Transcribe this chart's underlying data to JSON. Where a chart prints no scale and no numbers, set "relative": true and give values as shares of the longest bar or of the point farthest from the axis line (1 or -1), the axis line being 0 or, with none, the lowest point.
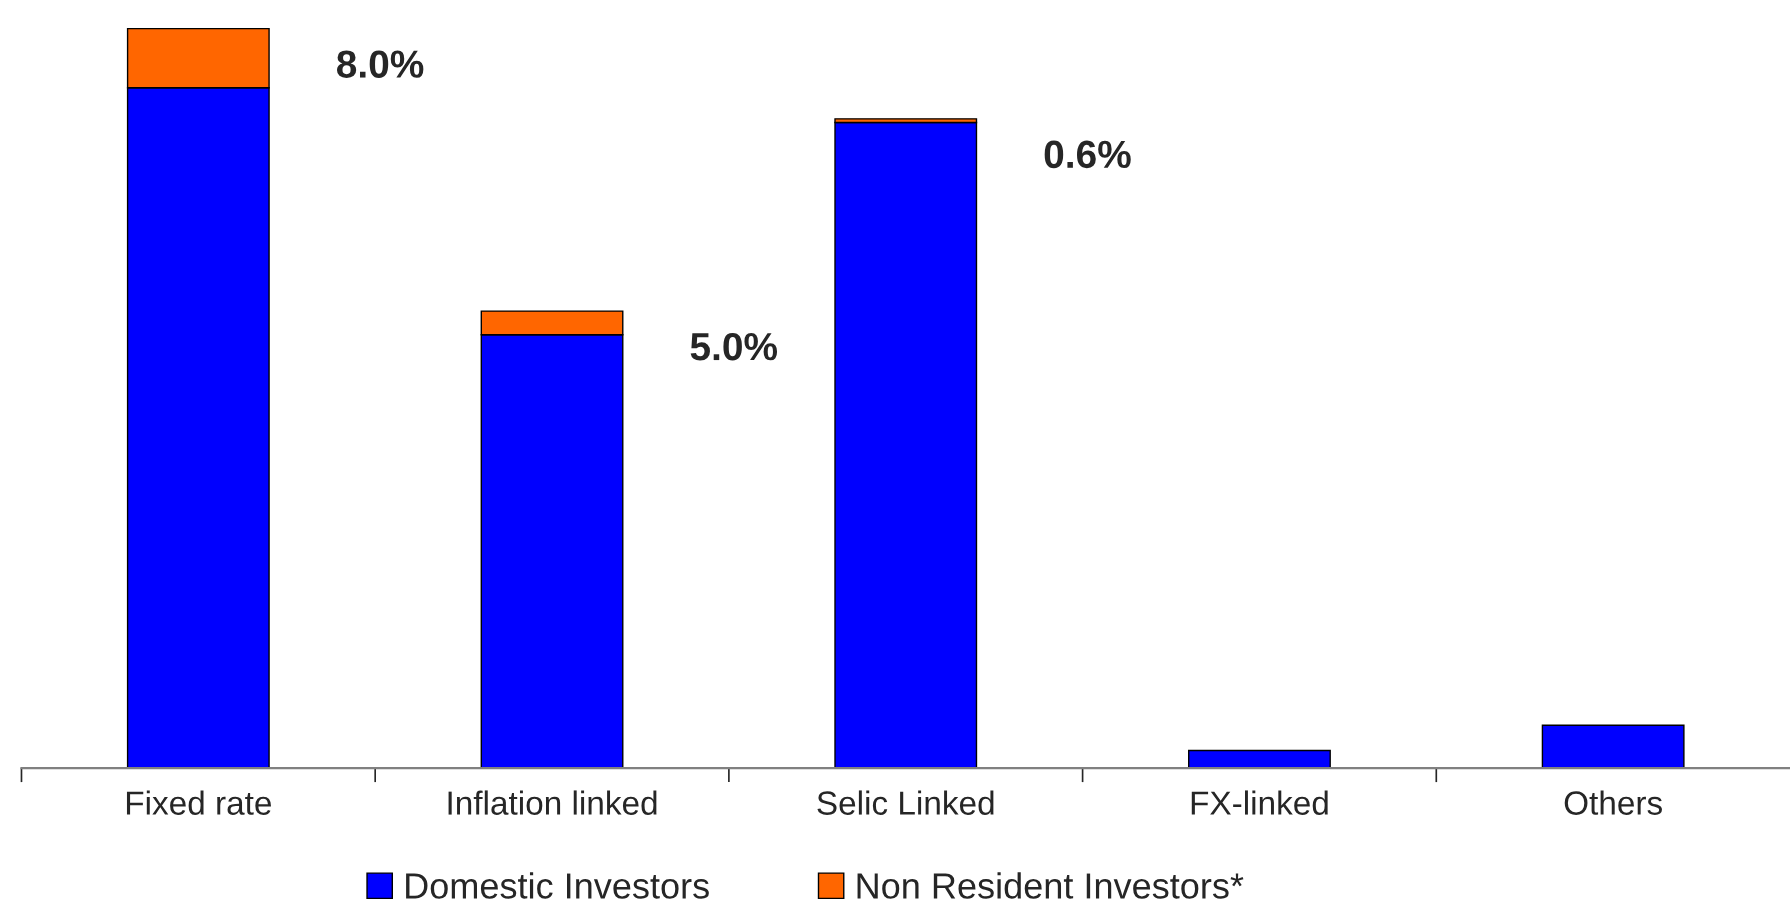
{
  "chart_data": {
    "type": "bar",
    "stacked": true,
    "relative": true,
    "categories": [
      "Fixed rate",
      "Inflation linked",
      "Selic Linked",
      "FX-linked",
      "Others"
    ],
    "series": [
      {
        "name": "Domestic Investors",
        "color": "#0000ff",
        "values": [
          0.92,
          0.586,
          0.873,
          0.024,
          0.058
        ]
      },
      {
        "name": "Non Resident Investors*",
        "color": "#ff6600",
        "values": [
          0.08,
          0.032,
          0.005,
          null,
          null
        ]
      }
    ],
    "annotations": [
      "8.0%",
      "5.0%",
      "0.6%"
    ],
    "legend": "bottom",
    "grid": false
  }
}
